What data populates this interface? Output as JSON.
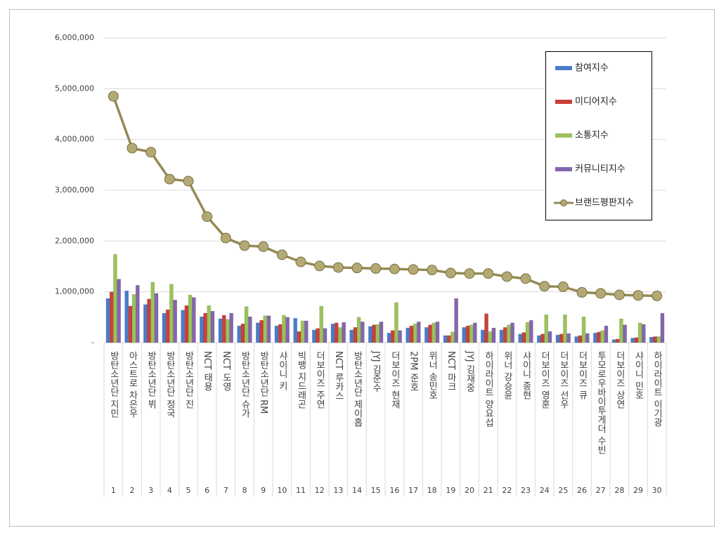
{
  "chart_data": {
    "type": "bar-line",
    "categories": [
      "방탄소년단 지민",
      "아스트로 차은우",
      "방탄소년단 뷔",
      "방탄소년단 정국",
      "방탄소년단 진",
      "NCT 태용",
      "NCT 도영",
      "방탄소년단 슈가",
      "방탄소년단 RM",
      "샤이니 키",
      "빅뱅 지드래곤",
      "더보이즈 주연",
      "NCT 루카스",
      "방탄소년단 제이홉",
      "JYJ 김준수",
      "더보이즈 현재",
      "2PM 준호",
      "위너 송민호",
      "NCT 마크",
      "JYJ 김재중",
      "하이라이트 양요섭",
      "위너 강승윤",
      "샤이니 종현",
      "더보이즈 영훈",
      "더보이즈 선우",
      "더보이즈 큐",
      "투모로우바이투게더 수빈",
      "더보이즈 상연",
      "샤이니 민호",
      "하이라이트 이기광"
    ],
    "ranks": [
      1,
      2,
      3,
      4,
      5,
      6,
      7,
      8,
      9,
      10,
      11,
      12,
      13,
      14,
      15,
      16,
      17,
      18,
      19,
      20,
      21,
      22,
      23,
      24,
      25,
      26,
      27,
      28,
      29,
      30
    ],
    "series": [
      {
        "name": "참여지수",
        "type": "bar",
        "color": "#4a7cc9",
        "values": [
          870000,
          1020000,
          750000,
          580000,
          640000,
          510000,
          470000,
          330000,
          390000,
          330000,
          480000,
          250000,
          370000,
          250000,
          320000,
          190000,
          290000,
          300000,
          140000,
          300000,
          250000,
          250000,
          170000,
          140000,
          150000,
          120000,
          190000,
          60000,
          90000,
          110000
        ]
      },
      {
        "name": "미디어지수",
        "type": "bar",
        "color": "#c9403a",
        "values": [
          1000000,
          720000,
          860000,
          650000,
          730000,
          580000,
          540000,
          370000,
          440000,
          360000,
          220000,
          280000,
          390000,
          300000,
          350000,
          240000,
          330000,
          350000,
          140000,
          330000,
          570000,
          300000,
          200000,
          170000,
          170000,
          140000,
          210000,
          70000,
          100000,
          120000
        ]
      },
      {
        "name": "소통지수",
        "type": "bar",
        "color": "#9bc25a",
        "values": [
          1740000,
          950000,
          1190000,
          1150000,
          940000,
          730000,
          460000,
          710000,
          530000,
          540000,
          430000,
          720000,
          300000,
          500000,
          360000,
          790000,
          370000,
          390000,
          210000,
          350000,
          220000,
          350000,
          400000,
          550000,
          550000,
          510000,
          240000,
          470000,
          390000,
          120000
        ]
      },
      {
        "name": "커뮤니티지수",
        "type": "bar",
        "color": "#8466ad",
        "values": [
          1250000,
          1130000,
          970000,
          840000,
          890000,
          620000,
          580000,
          510000,
          530000,
          500000,
          430000,
          280000,
          400000,
          410000,
          410000,
          240000,
          410000,
          410000,
          870000,
          390000,
          290000,
          390000,
          440000,
          220000,
          180000,
          180000,
          330000,
          350000,
          360000,
          580000
        ]
      },
      {
        "name": "브랜드평판지수",
        "type": "line",
        "color": "#948a54",
        "values": [
          4850000,
          3830000,
          3750000,
          3220000,
          3180000,
          2480000,
          2060000,
          1910000,
          1890000,
          1730000,
          1590000,
          1510000,
          1480000,
          1470000,
          1460000,
          1450000,
          1440000,
          1430000,
          1370000,
          1360000,
          1360000,
          1300000,
          1260000,
          1110000,
          1100000,
          990000,
          970000,
          940000,
          930000,
          920000
        ]
      }
    ],
    "ylim": [
      0,
      6000000
    ],
    "yticks": [
      {
        "value": 0,
        "label": "-"
      },
      {
        "value": 1000000,
        "label": "1,000,000"
      },
      {
        "value": 2000000,
        "label": "2,000,000"
      },
      {
        "value": 3000000,
        "label": "3,000,000"
      },
      {
        "value": 4000000,
        "label": "4,000,000"
      },
      {
        "value": 5000000,
        "label": "5,000,000"
      },
      {
        "value": 6000000,
        "label": "6,000,000"
      }
    ],
    "grid": true,
    "legend": "upper right"
  }
}
